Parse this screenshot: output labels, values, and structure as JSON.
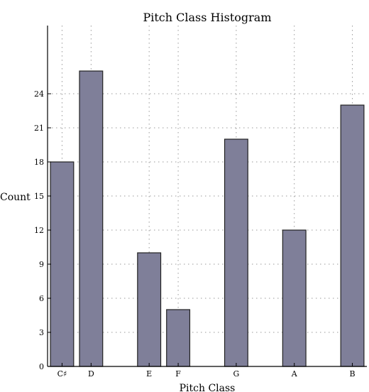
{
  "chart_data": {
    "type": "bar",
    "title": "Pitch Class Histogram",
    "xlabel": "Pitch Class",
    "ylabel": "Count",
    "categories": [
      "C♯",
      "D",
      "E",
      "F",
      "G",
      "A",
      "B"
    ],
    "x_positions": [
      1,
      2,
      4,
      5,
      7,
      9,
      11
    ],
    "values": [
      18,
      26,
      10,
      5,
      20,
      12,
      23
    ],
    "xlim": [
      0.5,
      11.5
    ],
    "ylim": [
      0,
      30
    ],
    "yticks": [
      0,
      3,
      6,
      9,
      12,
      15,
      18,
      21,
      24
    ],
    "grid": true,
    "bar_color": "#7f7f99",
    "edge_color": "#222222"
  }
}
